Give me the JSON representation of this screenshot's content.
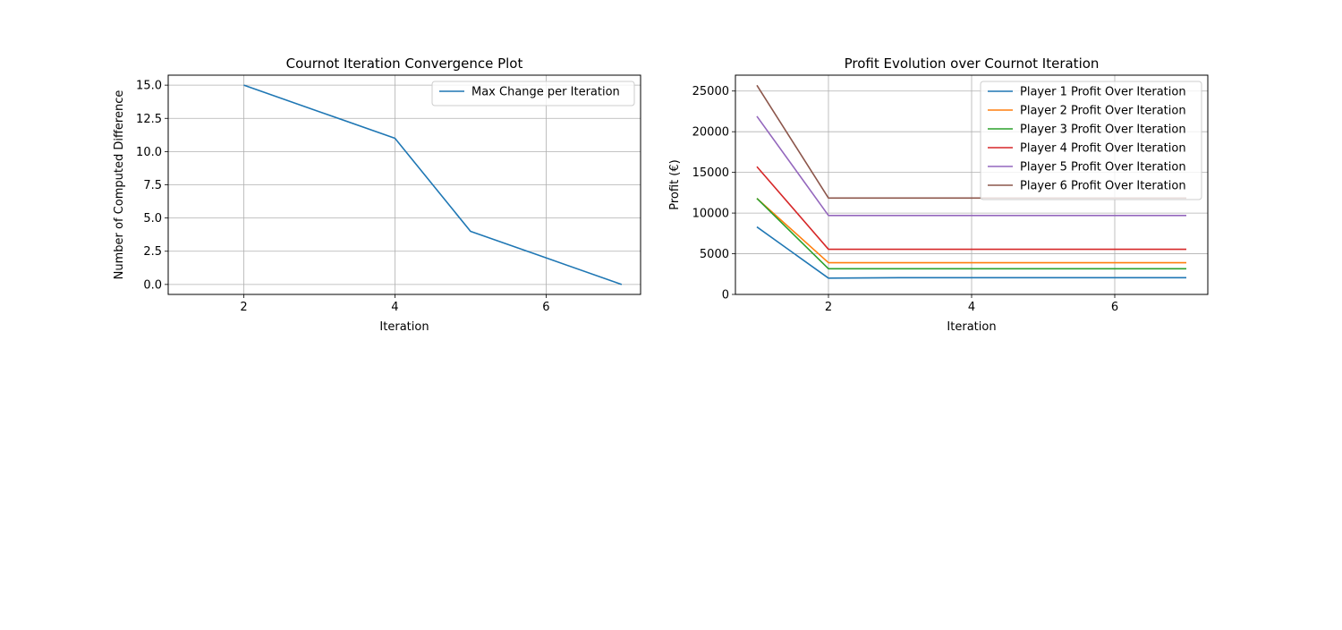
{
  "chart_data": [
    {
      "type": "line",
      "title": "Cournot Iteration Convergence Plot",
      "xlabel": "Iteration",
      "ylabel": "Number of Computed Difference",
      "xlim": [
        1,
        7.25
      ],
      "ylim": [
        -0.75,
        15.75
      ],
      "xticks": [
        2,
        4,
        6
      ],
      "yticks": [
        0.0,
        2.5,
        5.0,
        7.5,
        10.0,
        12.5,
        15.0
      ],
      "ytick_labels": [
        "0.0",
        "2.5",
        "5.0",
        "7.5",
        "10.0",
        "12.5",
        "15.0"
      ],
      "grid": true,
      "legend_position": "top-right",
      "x": [
        2,
        3,
        4,
        5,
        6,
        7
      ],
      "series": [
        {
          "name": "Max Change per Iteration",
          "color": "#1f77b4",
          "values": [
            15,
            13,
            11,
            4,
            2,
            0
          ]
        }
      ]
    },
    {
      "type": "line",
      "title": "Profit Evolution over Cournot Iteration",
      "xlabel": "Iteration",
      "ylabel": "Profit (€)",
      "xlim": [
        0.7,
        7.3
      ],
      "ylim": [
        0,
        26950
      ],
      "xticks": [
        2,
        4,
        6
      ],
      "yticks": [
        0,
        5000,
        10000,
        15000,
        20000,
        25000
      ],
      "ytick_labels": [
        "0",
        "5000",
        "10000",
        "15000",
        "20000",
        "25000"
      ],
      "grid": true,
      "legend_position": "top-right",
      "x": [
        1,
        2,
        3,
        4,
        5,
        6,
        7
      ],
      "series": [
        {
          "name": "Player 1 Profit Over Iteration",
          "color": "#1f77b4",
          "values": [
            8300,
            2000,
            2050,
            2050,
            2050,
            2050,
            2050
          ]
        },
        {
          "name": "Player 2 Profit Over Iteration",
          "color": "#ff7f0e",
          "values": [
            11800,
            3900,
            3900,
            3900,
            3900,
            3900,
            3900
          ]
        },
        {
          "name": "Player 3 Profit Over Iteration",
          "color": "#2ca02c",
          "values": [
            11800,
            3150,
            3150,
            3150,
            3150,
            3150,
            3150
          ]
        },
        {
          "name": "Player 4 Profit Over Iteration",
          "color": "#d62728",
          "values": [
            15700,
            5550,
            5550,
            5550,
            5550,
            5550,
            5550
          ]
        },
        {
          "name": "Player 5 Profit Over Iteration",
          "color": "#9467bd",
          "values": [
            21900,
            9700,
            9700,
            9700,
            9700,
            9700,
            9700
          ]
        },
        {
          "name": "Player 6 Profit Over Iteration",
          "color": "#8c564b",
          "values": [
            25700,
            11850,
            11850,
            11850,
            11850,
            11850,
            11850
          ]
        }
      ]
    }
  ]
}
